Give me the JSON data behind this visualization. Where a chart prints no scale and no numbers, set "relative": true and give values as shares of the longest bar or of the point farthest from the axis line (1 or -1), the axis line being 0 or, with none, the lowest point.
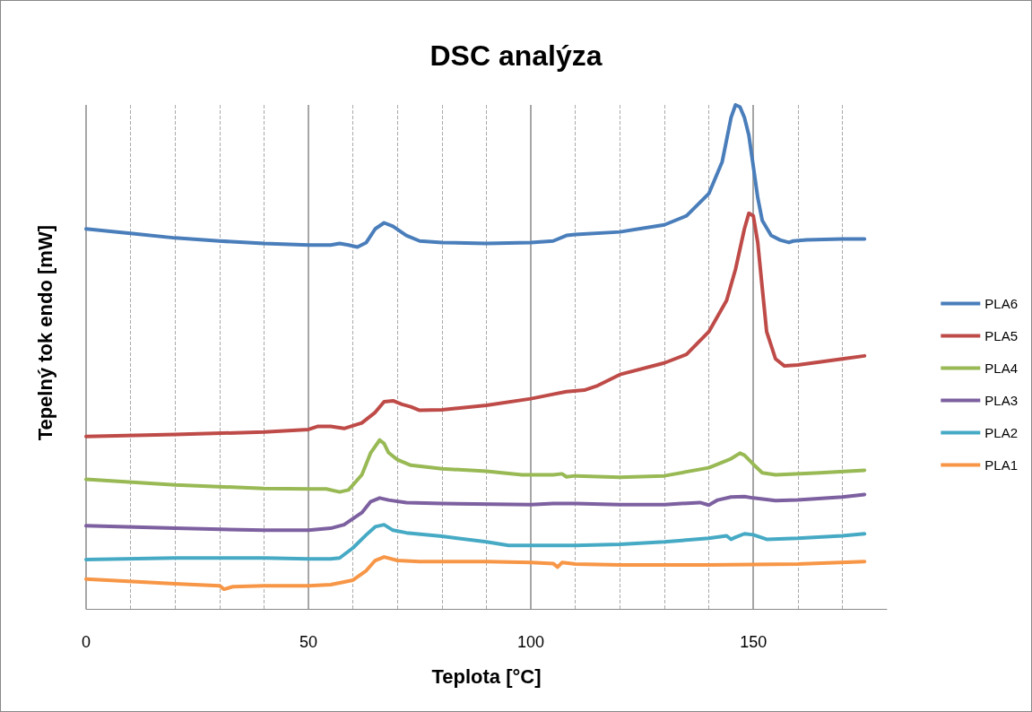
{
  "chart_data": {
    "type": "line",
    "title": "DSC analýza",
    "xlabel": "Teplota [°C]",
    "ylabel": "Tepelný tok endo [mW]",
    "relative": true,
    "xlim": [
      0,
      180
    ],
    "xticks": [
      0,
      50,
      100,
      150
    ],
    "grid": "x",
    "legend": "right",
    "marker": "none",
    "line_style": "solid",
    "series": [
      {
        "name": "PLA6",
        "color": "#4a7ebb",
        "x": [
          0,
          10,
          20,
          30,
          40,
          50,
          55,
          57,
          59,
          61,
          63,
          65,
          67,
          69,
          72,
          75,
          80,
          90,
          100,
          105,
          108,
          110,
          120,
          130,
          135,
          140,
          143,
          145,
          146,
          147,
          148,
          149,
          150,
          151,
          152,
          154,
          156,
          158,
          159,
          162,
          170,
          175
        ],
        "values": [
          0.754,
          0.745,
          0.736,
          0.73,
          0.725,
          0.722,
          0.722,
          0.725,
          0.722,
          0.718,
          0.727,
          0.754,
          0.766,
          0.759,
          0.741,
          0.73,
          0.727,
          0.725,
          0.727,
          0.73,
          0.741,
          0.743,
          0.748,
          0.762,
          0.78,
          0.824,
          0.887,
          0.975,
          1,
          0.996,
          0.975,
          0.94,
          0.878,
          0.816,
          0.771,
          0.741,
          0.732,
          0.727,
          0.73,
          0.732,
          0.734,
          0.734
        ]
      },
      {
        "name": "PLA5",
        "color": "#be4b48",
        "x": [
          0,
          20,
          40,
          50,
          52,
          55,
          58,
          62,
          65,
          67,
          69,
          71,
          73,
          75,
          80,
          90,
          100,
          105,
          108,
          112,
          115,
          120,
          130,
          135,
          140,
          144,
          146,
          148,
          149,
          150,
          151,
          152,
          153,
          155,
          157,
          160,
          170,
          175
        ],
        "values": [
          0.342,
          0.346,
          0.351,
          0.356,
          0.362,
          0.362,
          0.358,
          0.369,
          0.39,
          0.411,
          0.413,
          0.406,
          0.401,
          0.394,
          0.395,
          0.404,
          0.417,
          0.426,
          0.431,
          0.434,
          0.443,
          0.465,
          0.488,
          0.505,
          0.55,
          0.612,
          0.674,
          0.754,
          0.785,
          0.78,
          0.727,
          0.638,
          0.55,
          0.496,
          0.482,
          0.484,
          0.496,
          0.502
        ]
      },
      {
        "name": "PLA4",
        "color": "#98b954",
        "x": [
          0,
          20,
          40,
          50,
          54,
          57,
          59,
          62,
          64,
          66,
          67,
          68,
          70,
          73,
          80,
          90,
          98,
          100,
          105,
          107,
          108,
          110,
          120,
          130,
          140,
          145,
          147,
          148,
          150,
          152,
          155,
          165,
          175
        ],
        "values": [
          0.257,
          0.246,
          0.239,
          0.238,
          0.238,
          0.232,
          0.236,
          0.266,
          0.31,
          0.335,
          0.328,
          0.31,
          0.296,
          0.285,
          0.278,
          0.273,
          0.266,
          0.266,
          0.266,
          0.268,
          0.262,
          0.264,
          0.261,
          0.264,
          0.28,
          0.298,
          0.309,
          0.305,
          0.287,
          0.27,
          0.266,
          0.27,
          0.275
        ]
      },
      {
        "name": "PLA3",
        "color": "#7d60a0",
        "x": [
          0,
          20,
          40,
          50,
          55,
          58,
          62,
          64,
          66,
          68,
          72,
          80,
          100,
          105,
          110,
          120,
          130,
          138,
          140,
          142,
          145,
          148,
          150,
          155,
          160,
          170,
          175
        ],
        "values": [
          0.165,
          0.16,
          0.156,
          0.156,
          0.16,
          0.167,
          0.191,
          0.213,
          0.22,
          0.216,
          0.211,
          0.209,
          0.207,
          0.209,
          0.209,
          0.207,
          0.207,
          0.211,
          0.206,
          0.216,
          0.222,
          0.223,
          0.22,
          0.215,
          0.216,
          0.222,
          0.227
        ]
      },
      {
        "name": "PLA2",
        "color": "#46aac5",
        "x": [
          0,
          20,
          40,
          50,
          55,
          57,
          60,
          63,
          65,
          67,
          69,
          72,
          80,
          90,
          95,
          100,
          110,
          120,
          130,
          140,
          144,
          145,
          146,
          148,
          150,
          153,
          160,
          170,
          175
        ],
        "values": [
          0.098,
          0.101,
          0.101,
          0.099,
          0.099,
          0.101,
          0.121,
          0.147,
          0.163,
          0.167,
          0.156,
          0.151,
          0.144,
          0.133,
          0.126,
          0.126,
          0.126,
          0.128,
          0.133,
          0.14,
          0.145,
          0.138,
          0.142,
          0.149,
          0.147,
          0.138,
          0.14,
          0.145,
          0.149
        ]
      },
      {
        "name": "PLA1",
        "color": "#f79646",
        "x": [
          0,
          20,
          30,
          31,
          33,
          40,
          50,
          55,
          60,
          63,
          65,
          67,
          70,
          75,
          90,
          100,
          105,
          106,
          107,
          110,
          120,
          140,
          160,
          175
        ],
        "values": [
          0.059,
          0.05,
          0.046,
          0.039,
          0.044,
          0.046,
          0.046,
          0.048,
          0.057,
          0.076,
          0.096,
          0.103,
          0.096,
          0.094,
          0.094,
          0.092,
          0.09,
          0.083,
          0.092,
          0.089,
          0.087,
          0.087,
          0.089,
          0.094
        ]
      }
    ]
  }
}
